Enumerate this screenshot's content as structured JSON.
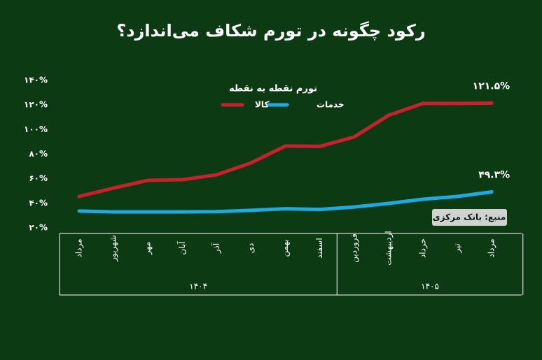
{
  "chart_data": {
    "type": "line",
    "title": "رکود چگونه در تورم شکاف می‌اندازد؟",
    "legend_title": "تورم نقطه به نقطه",
    "source": "منبع: بانک مرکزی",
    "categories": [
      "مرداد",
      "شهریور",
      "مهر",
      "آبان",
      "آذر",
      "دی",
      "بهمن",
      "اسفند",
      "فروردین",
      "اردیبهشت",
      "خرداد",
      "تیر",
      "مرداد"
    ],
    "groups": [
      {
        "label": "۱۴۰۴",
        "count": 8
      },
      {
        "label": "۱۴۰۵",
        "count": 5
      }
    ],
    "series": [
      {
        "name": "کالا",
        "color": "#c8202f",
        "values": [
          45.6,
          52.4,
          58.7,
          59.2,
          63.2,
          72.9,
          86.6,
          86.3,
          94,
          111.6,
          121.3,
          121.2,
          121.5
        ],
        "value_labels": [
          null,
          null,
          null,
          null,
          null,
          null,
          null,
          null,
          null,
          null,
          null,
          null,
          "۱۲۱.۵%"
        ]
      },
      {
        "name": "خدمات",
        "color": "#1ea9e1",
        "values": [
          33.7,
          33,
          33,
          33,
          33.2,
          34.3,
          35.6,
          35,
          37,
          39.9,
          43.3,
          45.6,
          49.3
        ],
        "value_labels": [
          null,
          null,
          null,
          null,
          null,
          null,
          null,
          null,
          null,
          null,
          null,
          null,
          "۴۹.۳%"
        ]
      }
    ],
    "ylim": [
      20,
      140
    ],
    "yticks": [
      {
        "value": 20,
        "label": "۲۰%"
      },
      {
        "value": 40,
        "label": "۴۰%"
      },
      {
        "value": 60,
        "label": "۶۰%"
      },
      {
        "value": 80,
        "label": "۸۰%"
      },
      {
        "value": 100,
        "label": "۱۰۰%"
      },
      {
        "value": 120,
        "label": "۱۲۰%"
      },
      {
        "value": 140,
        "label": "۱۴۰%"
      }
    ]
  }
}
